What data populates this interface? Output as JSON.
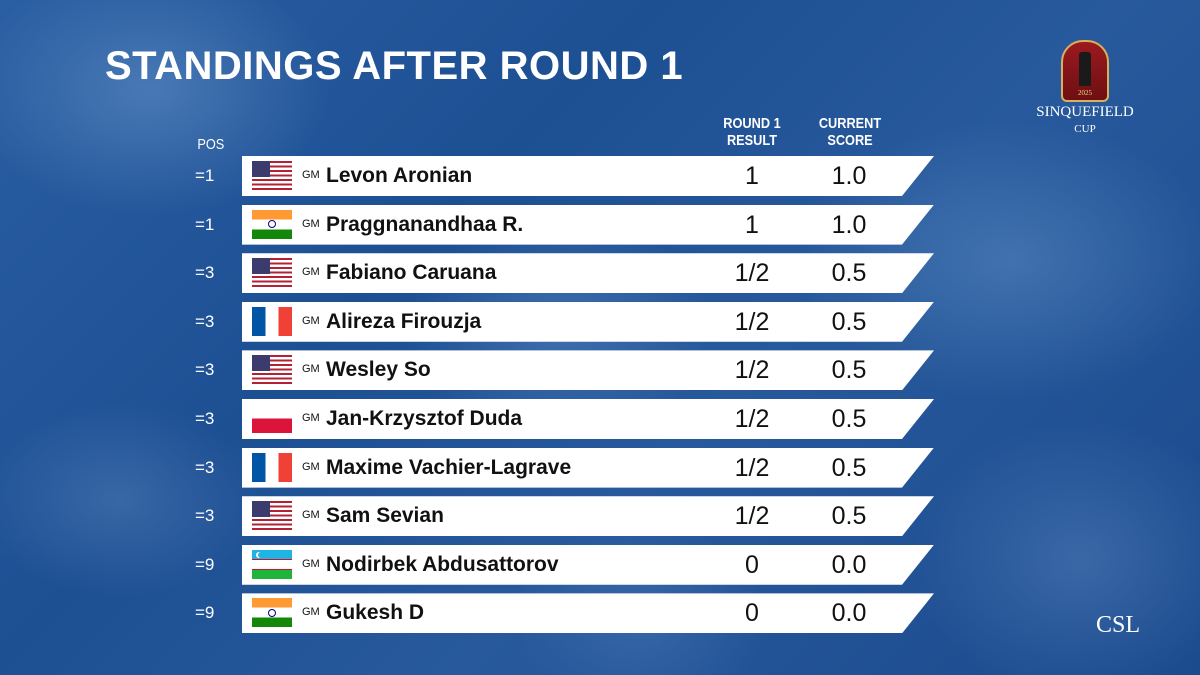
{
  "header": {
    "title": "STANDINGS AFTER ROUND 1",
    "col_pos": "POS",
    "col_round_line1": "ROUND 1",
    "col_round_line2": "RESULT",
    "col_score_line1": "CURRENT",
    "col_score_line2": "SCORE"
  },
  "logo": {
    "line1": "SINQUEFIELD",
    "line2": "CUP",
    "year": "2025"
  },
  "monogram": "CSL",
  "rows": [
    {
      "pos": "=1",
      "flag": "us-flag",
      "title": "GM",
      "name": "Levon Aronian",
      "result": "1",
      "score": "1.0"
    },
    {
      "pos": "=1",
      "flag": "india-flag",
      "title": "GM",
      "name": "Praggnanandhaa R.",
      "result": "1",
      "score": "1.0"
    },
    {
      "pos": "=3",
      "flag": "us-flag",
      "title": "GM",
      "name": "Fabiano Caruana",
      "result": "1/2",
      "score": "0.5"
    },
    {
      "pos": "=3",
      "flag": "france-flag",
      "title": "GM",
      "name": "Alireza Firouzja",
      "result": "1/2",
      "score": "0.5"
    },
    {
      "pos": "=3",
      "flag": "us-flag",
      "title": "GM",
      "name": "Wesley So",
      "result": "1/2",
      "score": "0.5"
    },
    {
      "pos": "=3",
      "flag": "poland-flag",
      "title": "GM",
      "name": "Jan-Krzysztof Duda",
      "result": "1/2",
      "score": "0.5"
    },
    {
      "pos": "=3",
      "flag": "france-flag",
      "title": "GM",
      "name": "Maxime Vachier-Lagrave",
      "result": "1/2",
      "score": "0.5"
    },
    {
      "pos": "=3",
      "flag": "us-flag",
      "title": "GM",
      "name": "Sam Sevian",
      "result": "1/2",
      "score": "0.5"
    },
    {
      "pos": "=9",
      "flag": "uzbekistan-flag",
      "title": "GM",
      "name": "Nodirbek Abdusattorov",
      "result": "0",
      "score": "0.0"
    },
    {
      "pos": "=9",
      "flag": "india-flag",
      "title": "GM",
      "name": "Gukesh D",
      "result": "0",
      "score": "0.0"
    }
  ]
}
